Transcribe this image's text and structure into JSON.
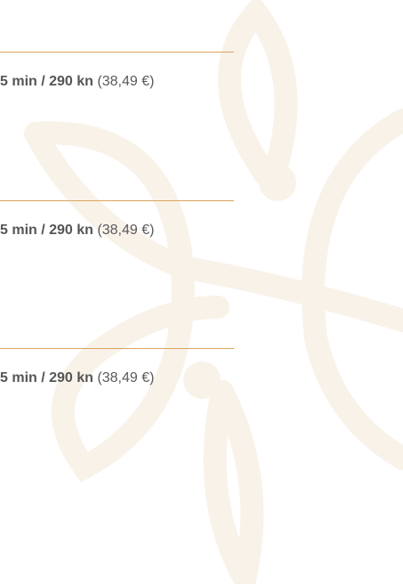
{
  "items": [
    {
      "price": "5 min / 290 kn",
      "euro": "(38,49 €)"
    },
    {
      "price": "5 min / 290 kn",
      "euro": "(38,49 €)"
    },
    {
      "price": "5 min / 290 kn",
      "euro": "(38,49 €)"
    }
  ]
}
